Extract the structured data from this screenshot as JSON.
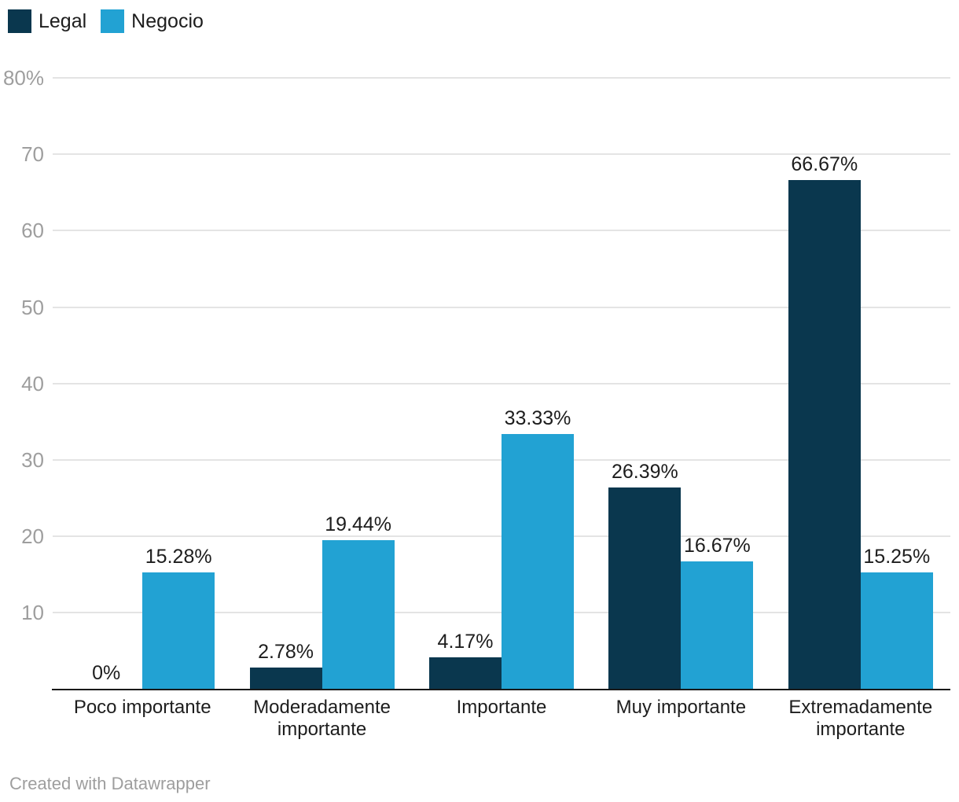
{
  "legend": {
    "items": [
      {
        "label": "Legal",
        "color": "#0a374e"
      },
      {
        "label": "Negocio",
        "color": "#22a2d3"
      }
    ]
  },
  "chart_data": {
    "type": "bar",
    "orientation": "vertical-grouped",
    "categories": [
      "Poco importante",
      "Moderadamente importante",
      "Importante",
      "Muy importante",
      "Extremadamente importante"
    ],
    "series": [
      {
        "name": "Legal",
        "color": "#0a374e",
        "values": [
          0,
          2.78,
          4.17,
          26.39,
          66.67
        ]
      },
      {
        "name": "Negocio",
        "color": "#22a2d3",
        "values": [
          15.28,
          19.44,
          33.33,
          16.67,
          15.25
        ]
      }
    ],
    "value_labels": [
      [
        "0%",
        "2.78%",
        "4.17%",
        "26.39%",
        "66.67%"
      ],
      [
        "15.28%",
        "19.44%",
        "33.33%",
        "16.67%",
        "15.25%"
      ]
    ],
    "y_ticks": [
      "80%",
      "70",
      "60",
      "50",
      "40",
      "30",
      "20",
      "10"
    ],
    "y_tick_values": [
      80,
      70,
      60,
      50,
      40,
      30,
      20,
      10
    ],
    "ylim": [
      0,
      80
    ],
    "unit": "%",
    "grid": true,
    "legend_position": "top-left",
    "title": "",
    "xlabel": "",
    "ylabel": ""
  },
  "footer": {
    "credit": "Created with Datawrapper"
  },
  "colors": {
    "grid": "#e4e4e4",
    "axis_line": "#191919",
    "tick_text": "#9e9e9e",
    "label_text": "#1d1d1d",
    "footer_text": "#9e9e9e",
    "background": "#ffffff"
  }
}
